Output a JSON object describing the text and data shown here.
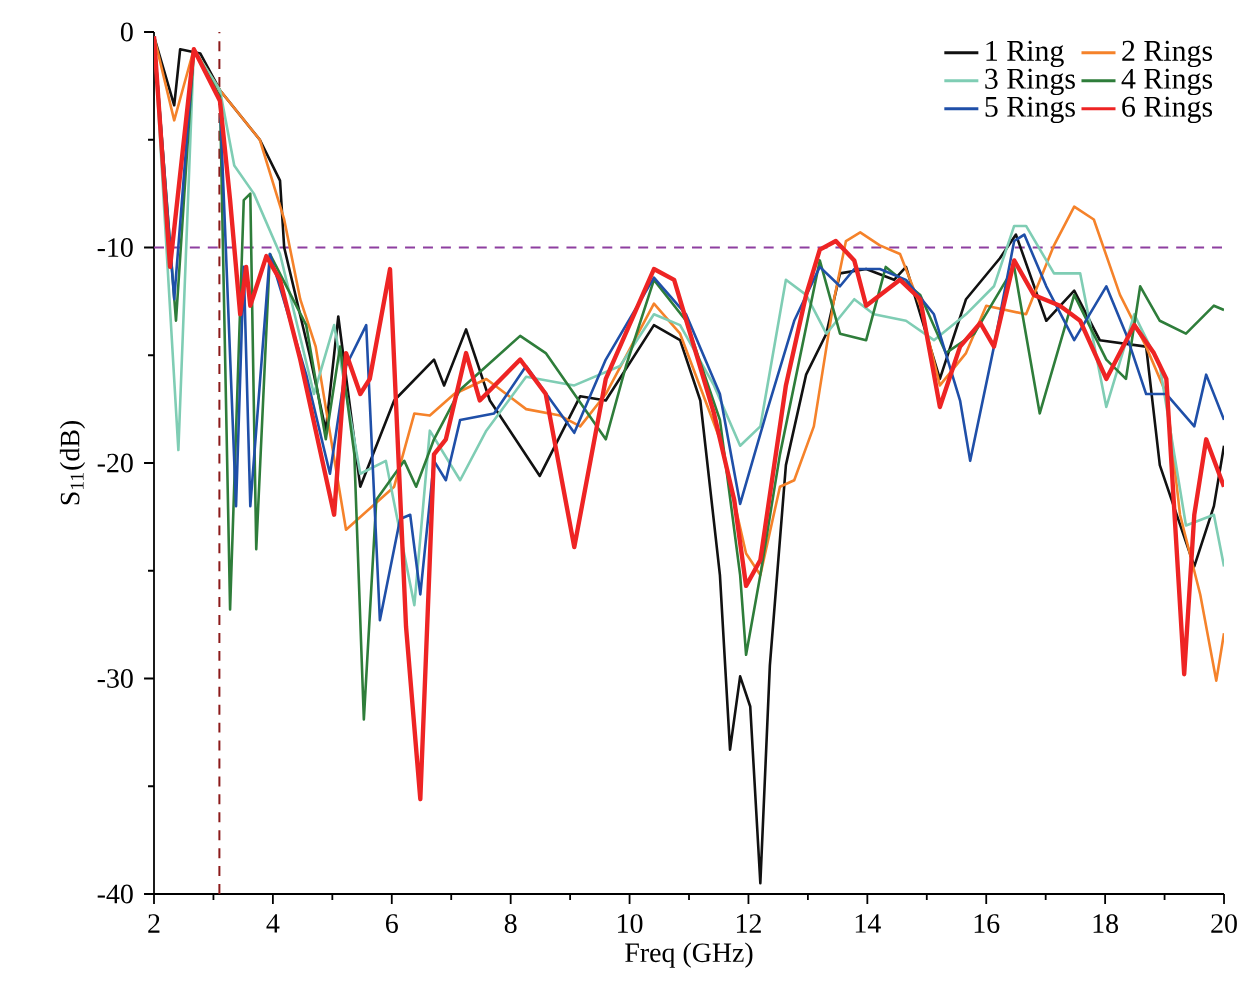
{
  "chart_data": {
    "type": "line",
    "xlabel": "Freq (GHz)",
    "ylabel": "S$_{11}$(dB)",
    "xlim": [
      2,
      20
    ],
    "xticks": [
      2,
      4,
      6,
      8,
      10,
      12,
      14,
      16,
      18,
      20
    ],
    "ylim": [
      -40,
      0
    ],
    "yticks": [
      -40,
      -30,
      -20,
      -10,
      0
    ],
    "grid": false,
    "legend": "top right",
    "marker": "none",
    "line_style": "solid",
    "series": [
      {
        "name": "1 Ring",
        "color": "#111111",
        "x": [
          2.0,
          2.34,
          2.44,
          2.78,
          3.11,
          3.78,
          4.12,
          4.19,
          4.62,
          4.89,
          5.1,
          5.47,
          6.04,
          6.71,
          6.88,
          7.25,
          7.65,
          8.49,
          9.17,
          9.6,
          10.41,
          10.85,
          11.19,
          11.52,
          11.69,
          11.86,
          12.03,
          12.2,
          12.36,
          12.63,
          12.97,
          13.31,
          13.54,
          13.98,
          14.45,
          14.65,
          15.22,
          15.66,
          16.23,
          16.5,
          17.01,
          17.48,
          17.91,
          18.69,
          18.92,
          19.5,
          19.83,
          20.0
        ],
        "values": [
          -0.2,
          -3.4,
          -0.8,
          -1.0,
          -2.7,
          -5.0,
          -6.9,
          -10.0,
          -15.0,
          -18.5,
          -13.2,
          -21.1,
          -17.1,
          -15.2,
          -16.4,
          -13.8,
          -17.1,
          -20.6,
          -16.9,
          -17.1,
          -13.6,
          -14.3,
          -17.1,
          -25.2,
          -33.3,
          -29.9,
          -31.3,
          -39.5,
          -29.4,
          -20.1,
          -15.9,
          -14.0,
          -11.2,
          -11.0,
          -11.5,
          -10.9,
          -16.1,
          -12.4,
          -10.5,
          -9.4,
          -13.4,
          -12.0,
          -14.3,
          -14.6,
          -20.1,
          -24.8,
          -22.0,
          -19.2
        ]
      },
      {
        "name": "2 Rings",
        "color": "#f5822a",
        "x": [
          2.0,
          2.34,
          2.67,
          3.11,
          3.78,
          4.19,
          4.46,
          4.72,
          5.23,
          6.04,
          6.38,
          6.64,
          7.05,
          7.59,
          8.26,
          8.83,
          9.17,
          9.6,
          10.41,
          10.85,
          11.52,
          11.96,
          12.2,
          12.53,
          12.77,
          13.1,
          13.44,
          13.64,
          13.88,
          14.21,
          14.55,
          14.89,
          15.22,
          15.66,
          16.0,
          16.67,
          17.14,
          17.48,
          17.81,
          18.25,
          18.69,
          19.03,
          19.26,
          19.6,
          19.87,
          20.0
        ],
        "values": [
          -0.2,
          -4.1,
          -0.8,
          -2.7,
          -5.0,
          -8.7,
          -12.4,
          -14.6,
          -23.1,
          -21.1,
          -17.7,
          -17.8,
          -16.8,
          -16.1,
          -17.5,
          -17.8,
          -18.3,
          -16.8,
          -12.6,
          -14.0,
          -18.9,
          -24.2,
          -25.2,
          -21.1,
          -20.8,
          -18.3,
          -12.4,
          -9.7,
          -9.3,
          -9.9,
          -10.3,
          -12.7,
          -16.4,
          -14.9,
          -12.7,
          -13.1,
          -9.9,
          -8.1,
          -8.7,
          -12.2,
          -14.6,
          -16.8,
          -22.4,
          -26.1,
          -30.1,
          -27.9
        ]
      },
      {
        "name": "3 Rings",
        "color": "#7fcdb4",
        "x": [
          2.0,
          2.41,
          2.67,
          3.11,
          3.35,
          3.68,
          4.12,
          4.69,
          5.03,
          5.47,
          5.9,
          6.38,
          6.64,
          7.15,
          7.59,
          8.26,
          9.07,
          9.84,
          10.41,
          10.85,
          11.42,
          11.86,
          12.2,
          12.63,
          12.97,
          13.31,
          13.78,
          14.11,
          14.65,
          15.12,
          15.66,
          16.13,
          16.47,
          16.67,
          17.14,
          17.58,
          18.02,
          18.49,
          18.92,
          19.36,
          19.83,
          20.0
        ],
        "values": [
          -0.2,
          -19.4,
          -0.8,
          -2.7,
          -6.2,
          -7.5,
          -10.3,
          -16.8,
          -13.6,
          -20.5,
          -19.9,
          -26.6,
          -18.5,
          -20.8,
          -18.5,
          -16.0,
          -16.4,
          -15.5,
          -13.1,
          -13.6,
          -16.4,
          -19.2,
          -18.3,
          -11.5,
          -12.2,
          -14.0,
          -12.4,
          -13.1,
          -13.4,
          -14.3,
          -13.1,
          -11.8,
          -9.0,
          -9.0,
          -11.2,
          -11.2,
          -17.4,
          -13.1,
          -15.5,
          -22.9,
          -22.4,
          -24.8
        ]
      },
      {
        "name": "4 Rings",
        "color": "#2e7d3a",
        "x": [
          2.0,
          2.37,
          2.67,
          3.11,
          3.28,
          3.51,
          3.62,
          3.72,
          3.95,
          4.56,
          4.89,
          5.13,
          5.37,
          5.53,
          5.74,
          6.21,
          6.41,
          6.71,
          7.15,
          8.16,
          8.59,
          9.6,
          9.94,
          10.41,
          10.95,
          11.52,
          11.86,
          11.96,
          12.2,
          12.53,
          13.2,
          13.54,
          13.98,
          14.31,
          14.89,
          15.32,
          15.8,
          16.47,
          16.9,
          17.48,
          18.02,
          18.35,
          18.59,
          18.92,
          19.36,
          19.83,
          20.0
        ],
        "values": [
          -0.2,
          -13.4,
          -0.8,
          -3.0,
          -26.8,
          -7.8,
          -7.5,
          -24.0,
          -10.3,
          -13.6,
          -18.9,
          -14.6,
          -19.6,
          -31.9,
          -21.7,
          -19.9,
          -21.1,
          -18.9,
          -16.6,
          -14.1,
          -14.9,
          -18.9,
          -15.5,
          -11.5,
          -13.4,
          -18.0,
          -25.2,
          -28.9,
          -25.2,
          -19.6,
          -10.6,
          -14.0,
          -14.3,
          -10.9,
          -12.2,
          -14.9,
          -14.0,
          -10.9,
          -17.7,
          -12.2,
          -15.2,
          -16.1,
          -11.8,
          -13.4,
          -14.0,
          -12.7,
          -12.9
        ]
      },
      {
        "name": "5 Rings",
        "color": "#1f4fa8",
        "x": [
          2.0,
          2.34,
          2.67,
          3.11,
          3.38,
          3.51,
          3.62,
          3.95,
          4.56,
          4.96,
          5.23,
          5.57,
          5.8,
          6.14,
          6.31,
          6.48,
          6.71,
          6.91,
          7.15,
          7.72,
          8.26,
          9.07,
          9.6,
          10.41,
          10.95,
          11.52,
          11.86,
          12.3,
          12.77,
          13.2,
          13.54,
          13.78,
          14.21,
          14.65,
          15.12,
          15.56,
          15.73,
          16.13,
          16.47,
          16.64,
          17.01,
          17.48,
          18.02,
          18.35,
          18.69,
          19.03,
          19.5,
          19.7,
          20.0
        ],
        "values": [
          -0.2,
          -12.4,
          -0.8,
          -3.2,
          -22.0,
          -10.9,
          -22.0,
          -10.3,
          -15.9,
          -20.5,
          -15.5,
          -13.6,
          -27.3,
          -22.6,
          -22.4,
          -26.1,
          -19.9,
          -20.8,
          -18.0,
          -17.7,
          -15.5,
          -18.6,
          -15.2,
          -11.4,
          -13.1,
          -16.8,
          -21.9,
          -17.7,
          -13.4,
          -10.9,
          -11.8,
          -11.0,
          -11.0,
          -11.5,
          -13.1,
          -17.1,
          -19.9,
          -14.6,
          -9.7,
          -9.4,
          -11.8,
          -14.3,
          -11.8,
          -14.0,
          -16.8,
          -16.8,
          -18.3,
          -15.9,
          -18.0
        ]
      },
      {
        "name": "6 Rings",
        "color": "#ee2424",
        "x": [
          2.0,
          2.27,
          2.67,
          3.11,
          3.28,
          3.45,
          3.55,
          3.62,
          3.89,
          4.12,
          4.46,
          5.03,
          5.23,
          5.47,
          5.63,
          5.97,
          6.24,
          6.48,
          6.71,
          6.91,
          7.25,
          7.48,
          8.16,
          8.59,
          9.07,
          9.6,
          10.41,
          10.75,
          11.42,
          11.76,
          11.96,
          12.2,
          12.63,
          12.97,
          13.2,
          13.47,
          13.78,
          13.98,
          14.55,
          14.89,
          15.22,
          15.56,
          15.9,
          16.13,
          16.47,
          16.8,
          17.24,
          17.58,
          18.02,
          18.49,
          18.82,
          19.03,
          19.33,
          19.5,
          19.7,
          20.0
        ],
        "values": [
          -0.2,
          -10.9,
          -0.8,
          -3.2,
          -7.8,
          -13.1,
          -10.9,
          -12.7,
          -10.4,
          -11.5,
          -15.2,
          -22.4,
          -14.9,
          -16.8,
          -16.1,
          -11.0,
          -27.6,
          -35.6,
          -19.6,
          -18.9,
          -14.9,
          -17.1,
          -15.2,
          -16.8,
          -23.9,
          -16.1,
          -11.0,
          -11.5,
          -17.7,
          -21.7,
          -25.7,
          -24.5,
          -16.4,
          -12.2,
          -10.1,
          -9.7,
          -10.6,
          -12.7,
          -11.5,
          -12.4,
          -17.4,
          -14.6,
          -13.5,
          -14.6,
          -10.6,
          -12.2,
          -12.7,
          -13.4,
          -16.1,
          -13.6,
          -14.9,
          -16.1,
          -29.8,
          -22.4,
          -18.9,
          -21.1
        ]
      }
    ],
    "ref_lines": [
      {
        "axis": "x",
        "value": 3.1,
        "color": "#8b1a1a",
        "line_style": "dashed"
      },
      {
        "axis": "y",
        "value": -10,
        "color": "#8e3fa0",
        "line_style": "dashed"
      }
    ]
  }
}
